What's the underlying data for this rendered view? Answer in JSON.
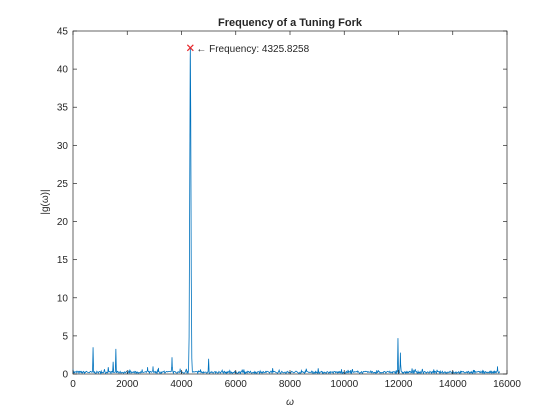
{
  "chart_data": {
    "type": "line",
    "title": "Frequency of a Tuning Fork",
    "xlabel": "ω",
    "ylabel": "|g(ω)|",
    "xlim": [
      0,
      16000
    ],
    "ylim": [
      0,
      45
    ],
    "x_ticks": [
      0,
      2000,
      4000,
      6000,
      8000,
      10000,
      12000,
      14000,
      16000
    ],
    "y_ticks": [
      0,
      5,
      10,
      15,
      20,
      25,
      30,
      35,
      40,
      45
    ],
    "grid": false,
    "series_color": "#0072BD",
    "marker_color": "#e8272b",
    "annotation": {
      "text": "← Frequency: 4325.8258",
      "x": 4325.8258,
      "y": 42.8
    },
    "peaks": [
      {
        "x": 0,
        "y": 0.6
      },
      {
        "x": 150,
        "y": 0.35
      },
      {
        "x": 500,
        "y": 0.35
      },
      {
        "x": 740,
        "y": 3.5
      },
      {
        "x": 1300,
        "y": 0.9
      },
      {
        "x": 1480,
        "y": 1.6
      },
      {
        "x": 1580,
        "y": 3.3
      },
      {
        "x": 2100,
        "y": 0.5
      },
      {
        "x": 2550,
        "y": 0.6
      },
      {
        "x": 2750,
        "y": 0.9
      },
      {
        "x": 2950,
        "y": 1.0
      },
      {
        "x": 3150,
        "y": 0.8
      },
      {
        "x": 3650,
        "y": 2.2
      },
      {
        "x": 3950,
        "y": 0.7
      },
      {
        "x": 4325.8258,
        "y": 42.8
      },
      {
        "x": 4700,
        "y": 0.6
      },
      {
        "x": 5000,
        "y": 2.0
      },
      {
        "x": 5500,
        "y": 0.5
      },
      {
        "x": 6300,
        "y": 0.6
      },
      {
        "x": 6900,
        "y": 0.4
      },
      {
        "x": 7600,
        "y": 0.5
      },
      {
        "x": 8600,
        "y": 0.7
      },
      {
        "x": 9900,
        "y": 0.5
      },
      {
        "x": 10500,
        "y": 0.4
      },
      {
        "x": 11200,
        "y": 0.5
      },
      {
        "x": 11980,
        "y": 4.7
      },
      {
        "x": 12070,
        "y": 2.8
      },
      {
        "x": 12600,
        "y": 0.5
      },
      {
        "x": 13300,
        "y": 0.6
      },
      {
        "x": 14000,
        "y": 0.4
      },
      {
        "x": 14800,
        "y": 0.5
      },
      {
        "x": 15650,
        "y": 1.0
      }
    ]
  }
}
